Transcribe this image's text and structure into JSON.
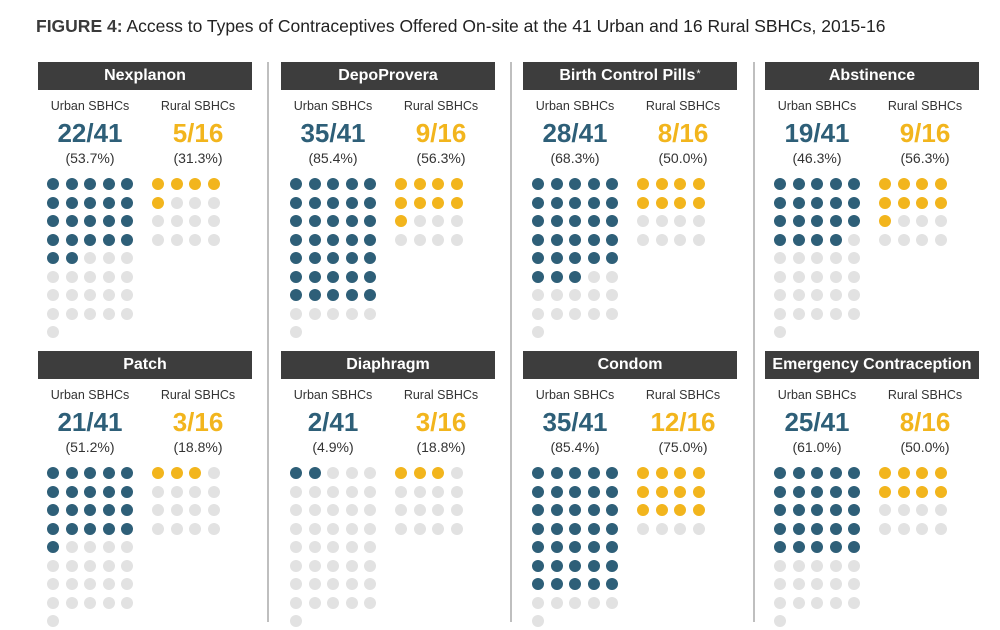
{
  "title_bold": "FIGURE 4:",
  "title_rest": " Access to Types of Contraceptives Offered On-site at the 41 Urban and 16 Rural SBHCs, 2015-16",
  "colors": {
    "urban": "#2e5f78",
    "rural": "#f2b51d",
    "empty": "#e2e2e2",
    "header": "#3d3d3d"
  },
  "chart_data": {
    "type": "table",
    "group_labels": [
      "Urban SBHCs",
      "Rural SBHCs"
    ],
    "totals": {
      "urban": 41,
      "rural": 16
    },
    "panels": [
      {
        "name": "Nexplanon",
        "urban": {
          "frac": "22/41",
          "pct": "(53.7%)",
          "count": 22
        },
        "rural": {
          "frac": "5/16",
          "pct": "(31.3%)",
          "count": 5
        }
      },
      {
        "name": "DepoProvera",
        "urban": {
          "frac": "35/41",
          "pct": "(85.4%)",
          "count": 35
        },
        "rural": {
          "frac": "9/16",
          "pct": "(56.3%)",
          "count": 9
        }
      },
      {
        "name": "Birth Control Pills",
        "asterisk": "*",
        "urban": {
          "frac": "28/41",
          "pct": "(68.3%)",
          "count": 28
        },
        "rural": {
          "frac": "8/16",
          "pct": "(50.0%)",
          "count": 8
        }
      },
      {
        "name": "Abstinence",
        "urban": {
          "frac": "19/41",
          "pct": "(46.3%)",
          "count": 19
        },
        "rural": {
          "frac": "9/16",
          "pct": "(56.3%)",
          "count": 9
        }
      },
      {
        "name": "Patch",
        "urban": {
          "frac": "21/41",
          "pct": "(51.2%)",
          "count": 21
        },
        "rural": {
          "frac": "3/16",
          "pct": "(18.8%)",
          "count": 3
        }
      },
      {
        "name": "Diaphragm",
        "urban": {
          "frac": "2/41",
          "pct": "(4.9%)",
          "count": 2
        },
        "rural": {
          "frac": "3/16",
          "pct": "(18.8%)",
          "count": 3
        }
      },
      {
        "name": "Condom",
        "urban": {
          "frac": "35/41",
          "pct": "(85.4%)",
          "count": 35
        },
        "rural": {
          "frac": "12/16",
          "pct": "(75.0%)",
          "count": 12
        }
      },
      {
        "name": "Emergency Contraception",
        "urban": {
          "frac": "25/41",
          "pct": "(61.0%)",
          "count": 25
        },
        "rural": {
          "frac": "8/16",
          "pct": "(50.0%)",
          "count": 8
        }
      }
    ]
  }
}
